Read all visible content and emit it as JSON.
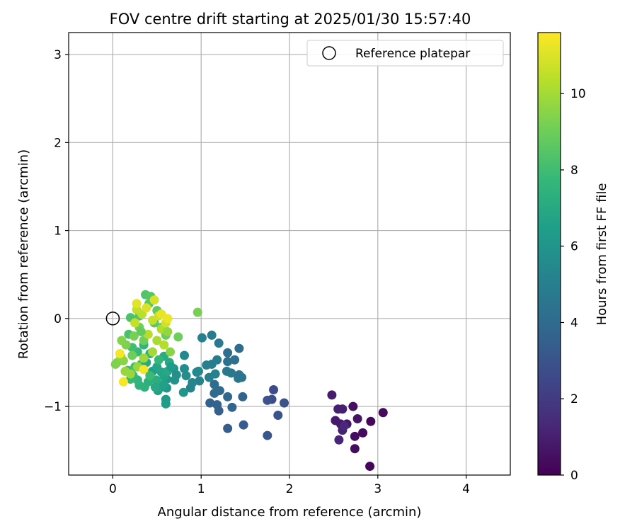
{
  "chart_data": {
    "type": "scatter",
    "title": "FOV centre drift starting at 2025/01/30 15:57:40",
    "xlabel": "Angular distance from reference (arcmin)",
    "ylabel": "Rotation from reference (arcmin)",
    "xlim": [
      -0.5,
      4.5
    ],
    "ylim": [
      -1.78,
      3.25
    ],
    "xticks": [
      0,
      1,
      2,
      3,
      4
    ],
    "yticks": [
      -1,
      0,
      1,
      2,
      3
    ],
    "grid": true,
    "legend_position": "top-right",
    "legend": [
      {
        "label": "Reference platepar",
        "marker": "open-circle"
      }
    ],
    "reference_point": {
      "x": 0,
      "y": 0
    },
    "colorbar": {
      "label": "Hours from first FF file",
      "colormap": "viridis",
      "range": [
        0,
        11.6
      ],
      "ticks": [
        0,
        2,
        4,
        6,
        8,
        10
      ]
    },
    "colors": {
      "viridis": [
        "#440154",
        "#482878",
        "#3e4a89",
        "#31688e",
        "#26828e",
        "#1f9e89",
        "#35b779",
        "#6ece58",
        "#b5de2b",
        "#fde725"
      ],
      "grid": "#b0b0b0",
      "axes": "#000000"
    },
    "points": [
      {
        "x": 2.91,
        "y": -1.68,
        "t": 0.2
      },
      {
        "x": 2.92,
        "y": -1.17,
        "t": 0.2
      },
      {
        "x": 3.06,
        "y": -1.07,
        "t": 0.3
      },
      {
        "x": 2.83,
        "y": -1.3,
        "t": 0.3
      },
      {
        "x": 2.74,
        "y": -1.34,
        "t": 0.4
      },
      {
        "x": 2.74,
        "y": -1.48,
        "t": 0.4
      },
      {
        "x": 2.72,
        "y": -1.0,
        "t": 0.5
      },
      {
        "x": 2.77,
        "y": -1.14,
        "t": 0.6
      },
      {
        "x": 2.65,
        "y": -1.2,
        "t": 0.7
      },
      {
        "x": 2.58,
        "y": -1.2,
        "t": 0.8
      },
      {
        "x": 2.52,
        "y": -1.16,
        "t": 0.8
      },
      {
        "x": 2.48,
        "y": -0.87,
        "t": 0.9
      },
      {
        "x": 2.55,
        "y": -1.03,
        "t": 1.0
      },
      {
        "x": 2.6,
        "y": -1.03,
        "t": 1.0
      },
      {
        "x": 2.6,
        "y": -1.27,
        "t": 1.1
      },
      {
        "x": 2.56,
        "y": -1.38,
        "t": 1.2
      },
      {
        "x": 2.62,
        "y": -1.22,
        "t": 1.3
      },
      {
        "x": 1.82,
        "y": -0.81,
        "t": 2.7
      },
      {
        "x": 1.8,
        "y": -0.92,
        "t": 2.8
      },
      {
        "x": 1.75,
        "y": -0.93,
        "t": 2.9
      },
      {
        "x": 1.94,
        "y": -0.96,
        "t": 2.9
      },
      {
        "x": 1.87,
        "y": -1.1,
        "t": 3.0
      },
      {
        "x": 1.75,
        "y": -1.33,
        "t": 3.1
      },
      {
        "x": 1.48,
        "y": -1.21,
        "t": 3.3
      },
      {
        "x": 1.3,
        "y": -1.25,
        "t": 3.4
      },
      {
        "x": 1.2,
        "y": -1.05,
        "t": 3.5
      },
      {
        "x": 1.1,
        "y": -0.96,
        "t": 3.6
      },
      {
        "x": 1.18,
        "y": -0.98,
        "t": 3.7
      },
      {
        "x": 1.35,
        "y": -1.01,
        "t": 3.8
      },
      {
        "x": 1.3,
        "y": -0.89,
        "t": 3.9
      },
      {
        "x": 1.15,
        "y": -0.85,
        "t": 4.0
      },
      {
        "x": 1.21,
        "y": -0.82,
        "t": 4.0
      },
      {
        "x": 1.15,
        "y": -0.75,
        "t": 4.1
      },
      {
        "x": 1.47,
        "y": -0.89,
        "t": 3.7
      },
      {
        "x": 1.43,
        "y": -0.34,
        "t": 4.1
      },
      {
        "x": 1.3,
        "y": -0.39,
        "t": 4.2
      },
      {
        "x": 1.38,
        "y": -0.47,
        "t": 4.3
      },
      {
        "x": 1.3,
        "y": -0.49,
        "t": 4.3
      },
      {
        "x": 1.46,
        "y": -0.67,
        "t": 4.4
      },
      {
        "x": 1.42,
        "y": -0.68,
        "t": 4.5
      },
      {
        "x": 1.43,
        "y": -0.64,
        "t": 4.5
      },
      {
        "x": 1.34,
        "y": -0.62,
        "t": 4.6
      },
      {
        "x": 1.29,
        "y": -0.6,
        "t": 4.6
      },
      {
        "x": 1.2,
        "y": -0.28,
        "t": 4.7
      },
      {
        "x": 1.12,
        "y": -0.19,
        "t": 4.8
      },
      {
        "x": 1.18,
        "y": -0.47,
        "t": 4.8
      },
      {
        "x": 1.12,
        "y": -0.52,
        "t": 4.9
      },
      {
        "x": 1.06,
        "y": -0.53,
        "t": 5.0
      },
      {
        "x": 1.09,
        "y": -0.67,
        "t": 5.0
      },
      {
        "x": 1.16,
        "y": -0.63,
        "t": 5.1
      },
      {
        "x": 1.01,
        "y": -0.22,
        "t": 5.1
      },
      {
        "x": 0.98,
        "y": -0.71,
        "t": 5.2
      },
      {
        "x": 0.9,
        "y": -0.73,
        "t": 5.3
      },
      {
        "x": 0.88,
        "y": -0.79,
        "t": 5.3
      },
      {
        "x": 0.97,
        "y": -0.6,
        "t": 5.4
      },
      {
        "x": 0.95,
        "y": -0.61,
        "t": 5.5
      },
      {
        "x": 0.81,
        "y": -0.42,
        "t": 5.5
      },
      {
        "x": 0.81,
        "y": -0.57,
        "t": 5.6
      },
      {
        "x": 0.83,
        "y": -0.65,
        "t": 5.7
      },
      {
        "x": 0.72,
        "y": -0.64,
        "t": 5.8
      },
      {
        "x": 0.69,
        "y": -0.57,
        "t": 5.9
      },
      {
        "x": 0.8,
        "y": -0.84,
        "t": 6.0
      },
      {
        "x": 0.61,
        "y": -0.69,
        "t": 6.1
      },
      {
        "x": 0.61,
        "y": -0.79,
        "t": 6.2
      },
      {
        "x": 0.6,
        "y": -0.92,
        "t": 6.3
      },
      {
        "x": 0.6,
        "y": -0.97,
        "t": 6.4
      },
      {
        "x": 0.55,
        "y": -0.78,
        "t": 6.5
      },
      {
        "x": 0.51,
        "y": -0.82,
        "t": 6.6
      },
      {
        "x": 0.57,
        "y": -0.75,
        "t": 6.6
      },
      {
        "x": 0.58,
        "y": -0.66,
        "t": 6.7
      },
      {
        "x": 0.55,
        "y": -0.61,
        "t": 6.8
      },
      {
        "x": 0.62,
        "y": -0.6,
        "t": 6.9
      },
      {
        "x": 0.64,
        "y": -0.5,
        "t": 7.0
      },
      {
        "x": 0.58,
        "y": -0.43,
        "t": 7.1
      },
      {
        "x": 0.49,
        "y": -0.7,
        "t": 7.2
      },
      {
        "x": 0.4,
        "y": -0.72,
        "t": 7.3
      },
      {
        "x": 0.36,
        "y": -0.78,
        "t": 7.4
      },
      {
        "x": 0.3,
        "y": -0.76,
        "t": 7.5
      },
      {
        "x": 0.28,
        "y": -0.7,
        "t": 7.6
      },
      {
        "x": 0.23,
        "y": -0.65,
        "t": 7.7
      },
      {
        "x": 0.2,
        "y": -0.69,
        "t": 7.8
      },
      {
        "x": 0.17,
        "y": -0.59,
        "t": 7.9
      },
      {
        "x": 0.25,
        "y": -0.55,
        "t": 8.0
      },
      {
        "x": 0.32,
        "y": -0.52,
        "t": 8.1
      },
      {
        "x": 0.38,
        "y": -0.5,
        "t": 7.0
      },
      {
        "x": 0.45,
        "y": -0.6,
        "t": 6.5
      },
      {
        "x": 0.5,
        "y": -0.55,
        "t": 6.8
      },
      {
        "x": 0.42,
        "y": -0.4,
        "t": 7.4
      },
      {
        "x": 0.35,
        "y": -0.3,
        "t": 7.6
      },
      {
        "x": 0.28,
        "y": -0.38,
        "t": 7.8
      },
      {
        "x": 0.22,
        "y": -0.33,
        "t": 8.0
      },
      {
        "x": 0.18,
        "y": -0.18,
        "t": 8.2
      },
      {
        "x": 0.2,
        "y": 0.01,
        "t": 8.3
      },
      {
        "x": 0.3,
        "y": 0.03,
        "t": 8.4
      },
      {
        "x": 0.37,
        "y": 0.27,
        "t": 8.4
      },
      {
        "x": 0.43,
        "y": 0.25,
        "t": 8.5
      },
      {
        "x": 0.41,
        "y": 0.17,
        "t": 8.6
      },
      {
        "x": 0.5,
        "y": 0.09,
        "t": 8.7
      },
      {
        "x": 0.47,
        "y": -0.05,
        "t": 8.6
      },
      {
        "x": 0.55,
        "y": -0.1,
        "t": 8.8
      },
      {
        "x": 0.6,
        "y": -0.19,
        "t": 8.9
      },
      {
        "x": 0.74,
        "y": -0.21,
        "t": 9.0
      },
      {
        "x": 0.96,
        "y": 0.07,
        "t": 9.2
      },
      {
        "x": 0.35,
        "y": -0.25,
        "t": 9.0
      },
      {
        "x": 0.3,
        "y": -0.1,
        "t": 9.1
      },
      {
        "x": 0.24,
        "y": -0.2,
        "t": 9.2
      },
      {
        "x": 0.15,
        "y": -0.3,
        "t": 9.3
      },
      {
        "x": 0.1,
        "y": -0.25,
        "t": 9.4
      },
      {
        "x": 0.12,
        "y": -0.48,
        "t": 9.5
      },
      {
        "x": 0.05,
        "y": -0.5,
        "t": 9.5
      },
      {
        "x": 0.09,
        "y": -0.43,
        "t": 9.6
      },
      {
        "x": 0.14,
        "y": -0.6,
        "t": 9.7
      },
      {
        "x": 0.2,
        "y": -0.63,
        "t": 9.8
      },
      {
        "x": 0.28,
        "y": -0.55,
        "t": 9.8
      },
      {
        "x": 0.35,
        "y": -0.45,
        "t": 9.9
      },
      {
        "x": 0.45,
        "y": -0.38,
        "t": 10.0
      },
      {
        "x": 0.5,
        "y": -0.25,
        "t": 10.1
      },
      {
        "x": 0.55,
        "y": -0.12,
        "t": 10.2
      },
      {
        "x": 0.58,
        "y": -0.3,
        "t": 10.3
      },
      {
        "x": 0.4,
        "y": -0.18,
        "t": 10.3
      },
      {
        "x": 0.33,
        "y": 0.05,
        "t": 10.4
      },
      {
        "x": 0.27,
        "y": 0.1,
        "t": 10.5
      },
      {
        "x": 0.25,
        "y": -0.05,
        "t": 10.6
      },
      {
        "x": 0.45,
        "y": -0.02,
        "t": 10.6
      },
      {
        "x": 0.52,
        "y": 0.03,
        "t": 10.7
      },
      {
        "x": 0.6,
        "y": -0.05,
        "t": 10.8
      },
      {
        "x": 0.47,
        "y": 0.21,
        "t": 10.9
      },
      {
        "x": 0.38,
        "y": 0.12,
        "t": 11.0
      },
      {
        "x": 0.27,
        "y": 0.17,
        "t": 11.1
      },
      {
        "x": 0.55,
        "y": 0.05,
        "t": 11.2
      },
      {
        "x": 0.62,
        "y": 0.0,
        "t": 11.3
      },
      {
        "x": 0.35,
        "y": -0.58,
        "t": 11.4
      },
      {
        "x": 0.12,
        "y": -0.72,
        "t": 11.5
      },
      {
        "x": 0.08,
        "y": -0.4,
        "t": 11.5
      },
      {
        "x": 0.22,
        "y": -0.42,
        "t": 9.0
      },
      {
        "x": 0.42,
        "y": -0.65,
        "t": 7.9
      },
      {
        "x": 0.52,
        "y": -0.47,
        "t": 7.7
      },
      {
        "x": 0.03,
        "y": -0.52,
        "t": 9.3
      },
      {
        "x": 0.65,
        "y": -0.38,
        "t": 9.5
      },
      {
        "x": 0.62,
        "y": -0.15,
        "t": 9.7
      },
      {
        "x": 0.32,
        "y": -0.15,
        "t": 8.8
      },
      {
        "x": 0.48,
        "y": -0.78,
        "t": 6.9
      },
      {
        "x": 0.66,
        "y": -0.55,
        "t": 6.3
      },
      {
        "x": 0.7,
        "y": -0.7,
        "t": 5.9
      }
    ]
  }
}
